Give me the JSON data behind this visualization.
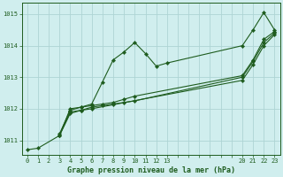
{
  "title": "Graphe pression niveau de la mer (hPa)",
  "bg_color": "#d0eeee",
  "grid_color": "#aed4d4",
  "line_color": "#1e5c1e",
  "xlim": [
    -0.5,
    23.5
  ],
  "ylim": [
    1010.55,
    1015.35
  ],
  "yticks": [
    1011,
    1012,
    1013,
    1014,
    1015
  ],
  "xtick_positions": [
    0,
    1,
    2,
    3,
    4,
    5,
    6,
    7,
    8,
    9,
    10,
    11,
    12,
    13,
    20,
    21,
    22,
    23
  ],
  "xtick_labels": [
    "0",
    "1",
    "2",
    "3",
    "4",
    "5",
    "6",
    "7",
    "8",
    "9",
    "10",
    "11",
    "12",
    "13",
    "20",
    "21",
    "22",
    "23"
  ],
  "series": [
    {
      "x": [
        0,
        1,
        3,
        4,
        5,
        6,
        7,
        8,
        9,
        10,
        11,
        12,
        13,
        20,
        21,
        22,
        23
      ],
      "y": [
        1010.7,
        1010.75,
        1011.15,
        1012.0,
        1012.05,
        1012.15,
        1012.85,
        1013.55,
        1013.8,
        1014.1,
        1013.75,
        1013.35,
        1013.45,
        1014.0,
        1014.5,
        1015.05,
        1014.5
      ]
    },
    {
      "x": [
        3,
        4,
        5,
        6,
        7,
        8,
        9,
        10,
        20,
        21,
        22,
        23
      ],
      "y": [
        1011.15,
        1011.85,
        1011.95,
        1012.05,
        1012.1,
        1012.15,
        1012.2,
        1012.25,
        1013.0,
        1013.5,
        1014.1,
        1014.4
      ]
    },
    {
      "x": [
        3,
        4,
        5,
        6,
        7,
        8,
        9,
        10,
        20,
        21,
        22,
        23
      ],
      "y": [
        1011.2,
        1011.95,
        1012.05,
        1012.1,
        1012.15,
        1012.2,
        1012.3,
        1012.4,
        1013.05,
        1013.55,
        1014.2,
        1014.45
      ]
    },
    {
      "x": [
        3,
        4,
        5,
        6,
        20,
        21,
        22,
        23
      ],
      "y": [
        1011.15,
        1011.9,
        1011.95,
        1012.0,
        1012.9,
        1013.4,
        1014.0,
        1014.35
      ]
    }
  ]
}
